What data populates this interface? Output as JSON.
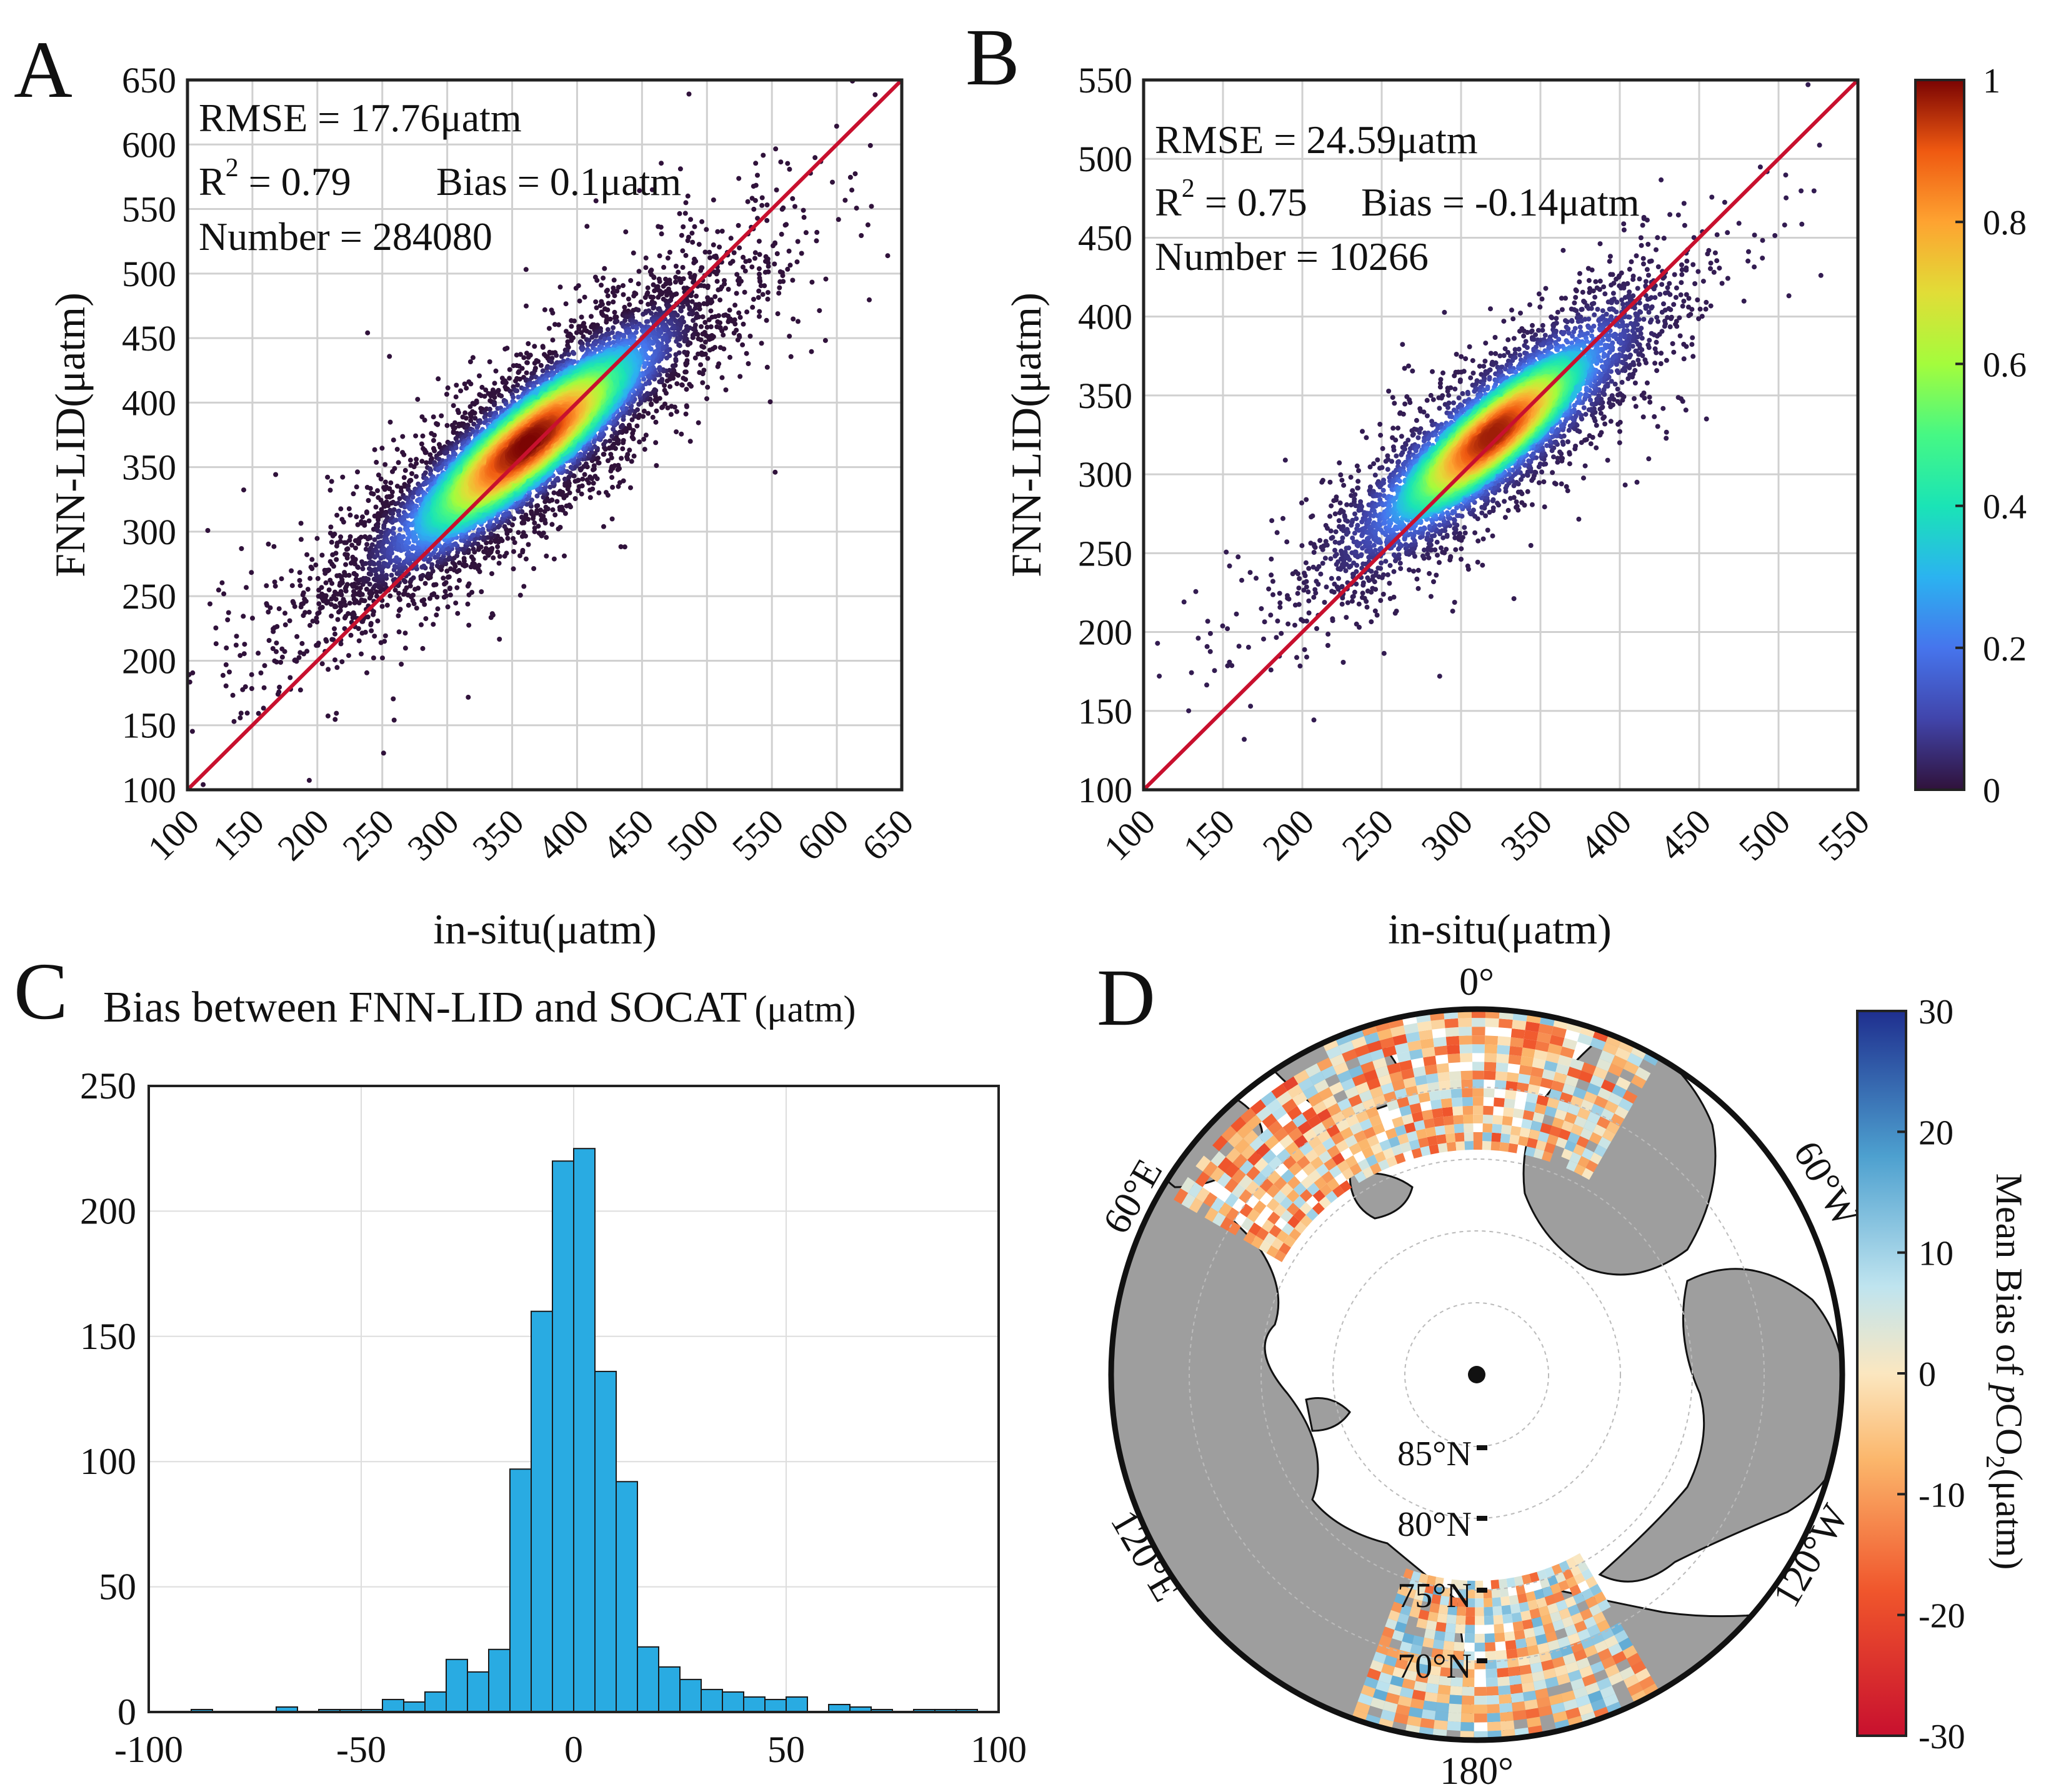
{
  "panel_labels": {
    "a": "A",
    "b": "B",
    "c": "C",
    "d": "D"
  },
  "chart_data": [
    {
      "type": "scatter",
      "id": "A",
      "xlabel": "in-situ(μatm)",
      "ylabel": "FNN-LID(μatm)",
      "xlim": [
        100,
        650
      ],
      "ylim": [
        100,
        650
      ],
      "ticks": [
        100,
        150,
        200,
        250,
        300,
        350,
        400,
        450,
        500,
        550,
        600,
        650
      ],
      "one_to_one_line": true,
      "density_center": [
        362,
        368
      ],
      "density_spread": [
        70,
        60
      ],
      "density_correlation": 0.88,
      "point_count_drawn": 6500,
      "stats": {
        "rmse": "RMSE = 17.76μatm",
        "r2_prefix": "R",
        "r2_exp": "2",
        "r2_value": " = 0.79",
        "bias": "Bias = 0.1μatm",
        "number": "Number = 284080"
      }
    },
    {
      "type": "scatter",
      "id": "B",
      "xlabel": "in-situ(μatm)",
      "ylabel": "FNN-LID(μatm)",
      "xlim": [
        100,
        550
      ],
      "ylim": [
        100,
        550
      ],
      "ticks": [
        100,
        150,
        200,
        250,
        300,
        350,
        400,
        450,
        500,
        550
      ],
      "one_to_one_line": true,
      "density_center": [
        320,
        325
      ],
      "density_spread": [
        48,
        42
      ],
      "density_correlation": 0.87,
      "point_count_drawn": 5000,
      "stats": {
        "rmse": "RMSE = 24.59μatm",
        "r2_prefix": "R",
        "r2_exp": "2",
        "r2_value": " = 0.75",
        "bias": "Bias = -0.14μatm",
        "number": "Number = 10266"
      },
      "colorbar": {
        "min": 0,
        "max": 1,
        "ticks": [
          "0",
          "0.2",
          "0.4",
          "0.6",
          "0.8",
          "1"
        ]
      }
    },
    {
      "type": "bar",
      "id": "C",
      "title": "Bias between FNN-LID and SOCAT",
      "title_unit": "(μatm)",
      "xlim": [
        -100,
        100
      ],
      "ylim": [
        0,
        250
      ],
      "xticks": [
        "-100",
        "-50",
        "0",
        "50",
        "100"
      ],
      "yticks": [
        "0",
        "50",
        "100",
        "150",
        "200",
        "250"
      ],
      "bin_width": 5,
      "bin_starts": [
        -90,
        -85,
        -80,
        -75,
        -70,
        -65,
        -60,
        -55,
        -50,
        -45,
        -40,
        -35,
        -30,
        -25,
        -20,
        -15,
        -10,
        -5,
        0,
        5,
        10,
        15,
        20,
        25,
        30,
        35,
        40,
        45,
        50,
        55,
        60,
        65,
        70,
        75,
        80,
        85,
        90
      ],
      "values": [
        1,
        0,
        0,
        0,
        2,
        0,
        1,
        1,
        1,
        5,
        4,
        8,
        21,
        16,
        25,
        97,
        160,
        220,
        225,
        136,
        92,
        26,
        18,
        13,
        9,
        8,
        6,
        5,
        6,
        0,
        3,
        2,
        1,
        0,
        1,
        1,
        1
      ],
      "color": "#29abe2"
    },
    {
      "type": "heatmap",
      "id": "D",
      "projection": "north-polar-stereographic",
      "lon_labels": [
        "0°",
        "60°E",
        "120°E",
        "180°",
        "120°W",
        "60°W"
      ],
      "lat_labels": [
        "85°N",
        "80°N",
        "75°N",
        "70°N"
      ],
      "colorbar": {
        "label_prefix": "Mean Bias of ",
        "label_italic": "p",
        "label_mid": "CO",
        "label_sub": "2",
        "label_unit": "(μatm)",
        "min": -30,
        "max": 30,
        "ticks": [
          "-30",
          "-20",
          "-10",
          "0",
          "10",
          "20",
          "30"
        ]
      },
      "land_color": "#9e9e9e"
    }
  ]
}
